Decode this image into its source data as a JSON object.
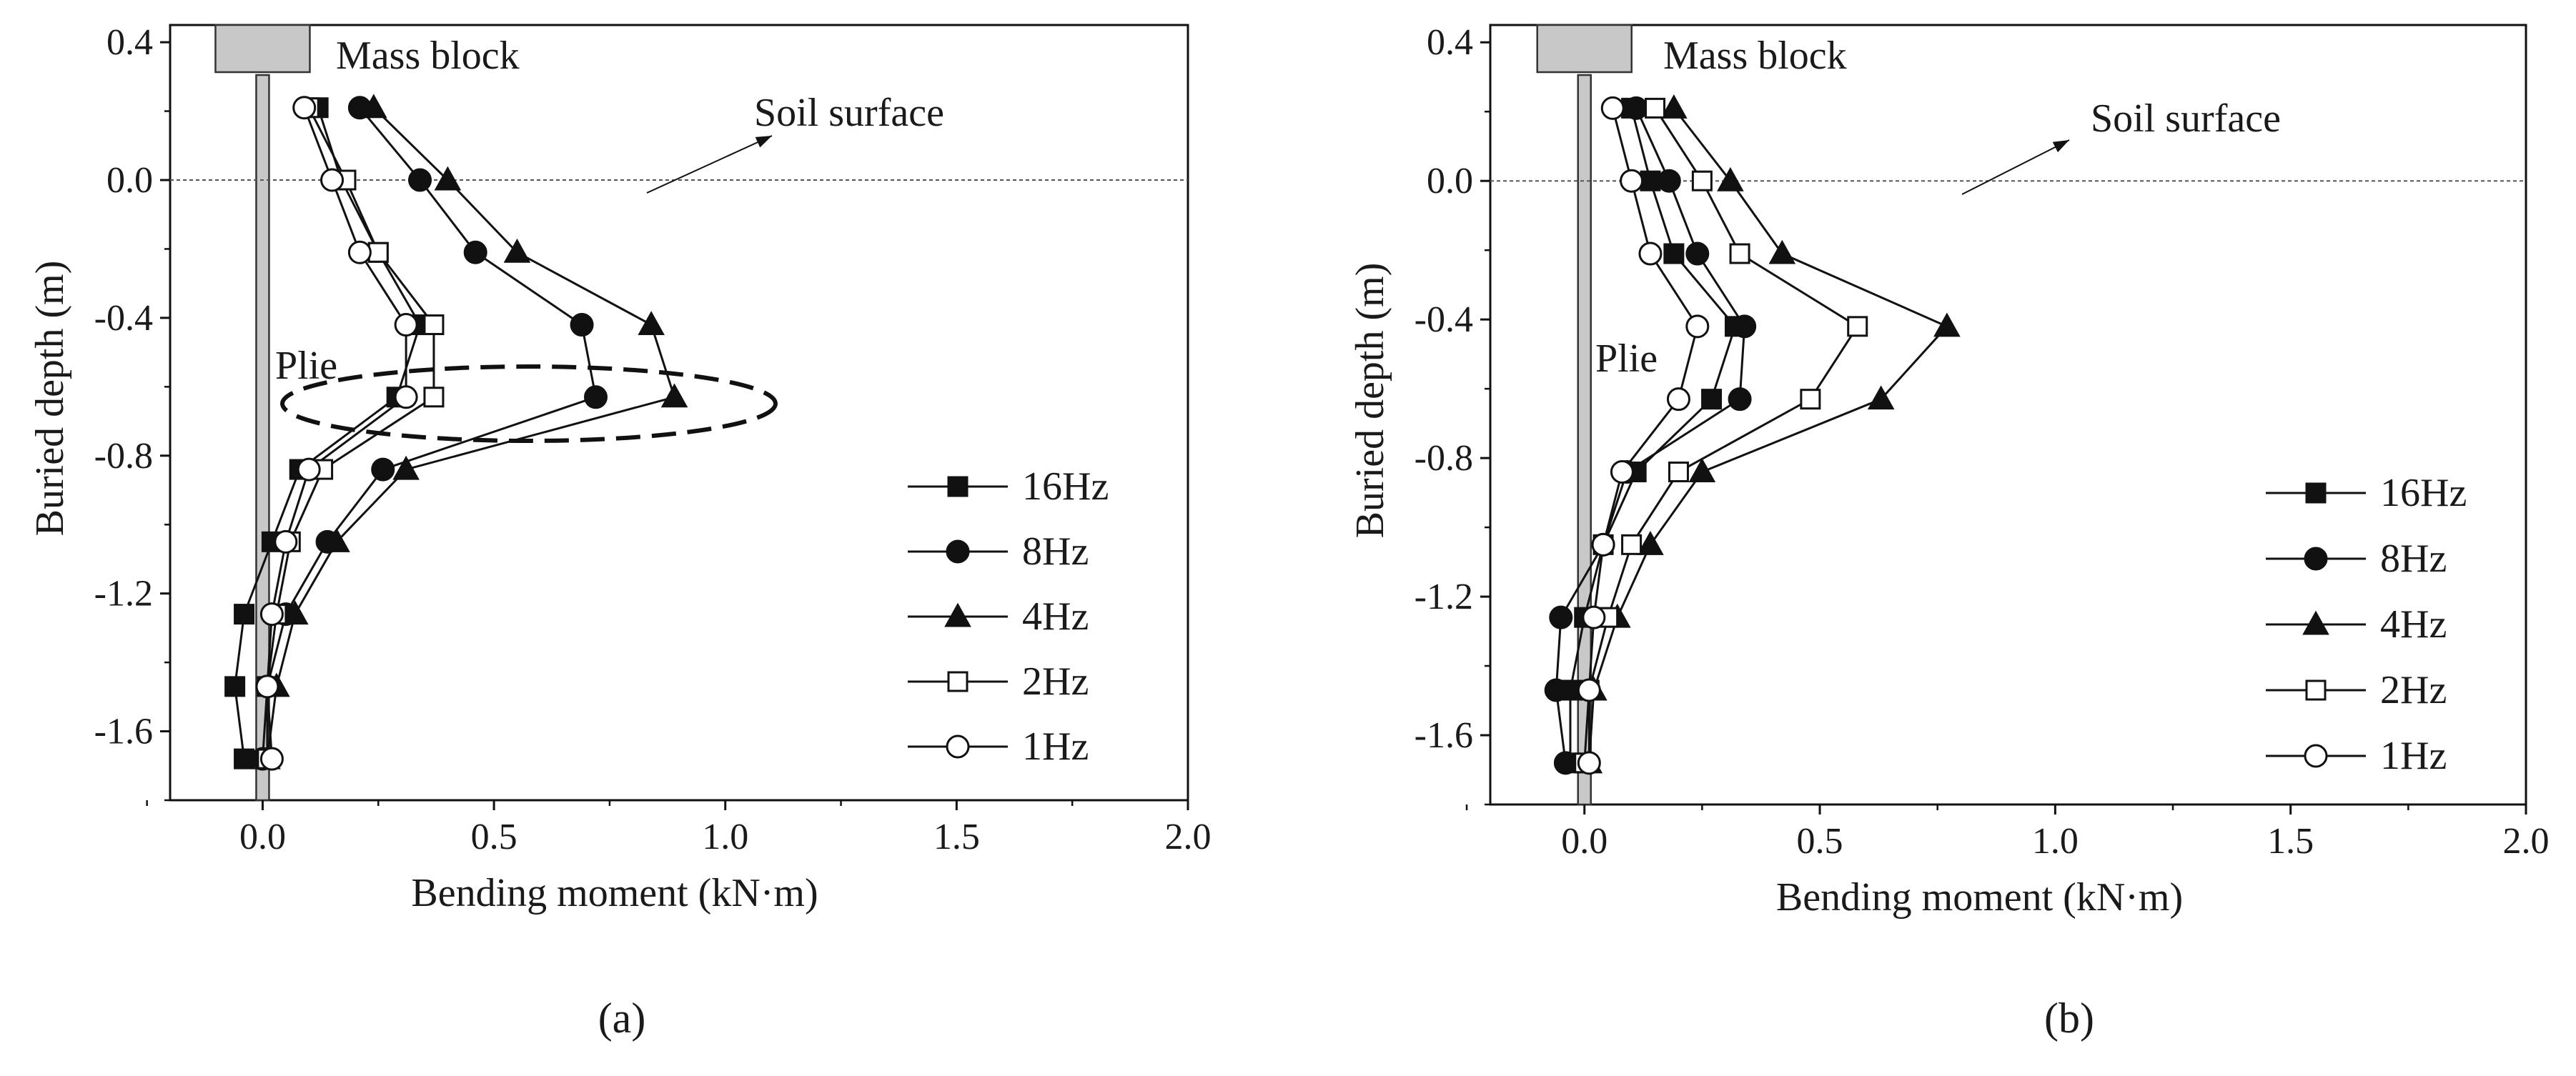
{
  "chart_data": [
    {
      "type": "line",
      "panel_label": "(a)",
      "xlabel": "Bending moment (kN·m)",
      "ylabel": "Buried depth (m)",
      "xlim": [
        -0.2,
        2.0
      ],
      "ylim": [
        -1.8,
        0.45
      ],
      "xticks": [
        "0.0",
        "0.5",
        "1.0",
        "1.5",
        "2.0"
      ],
      "yticks": [
        "0.4",
        "0.0",
        "-0.4",
        "-0.8",
        "-1.2",
        "-1.6"
      ],
      "annotations": {
        "mass_block": "Mass block",
        "soil_surface": "Soil surface",
        "pile": "Plie"
      },
      "series": [
        {
          "name": "16Hz",
          "marker": "square-filled",
          "x": [
            0.12,
            0.17,
            0.25,
            0.34,
            0.29,
            0.08,
            0.02,
            -0.04,
            -0.06,
            -0.04
          ],
          "y": [
            0.21,
            0.0,
            -0.21,
            -0.42,
            -0.63,
            -0.84,
            -1.05,
            -1.26,
            -1.47,
            -1.68
          ]
        },
        {
          "name": "8Hz",
          "marker": "circle-filled",
          "x": [
            0.21,
            0.34,
            0.46,
            0.69,
            0.72,
            0.26,
            0.14,
            0.05,
            0.01,
            0.0
          ],
          "y": [
            0.21,
            0.0,
            -0.21,
            -0.42,
            -0.63,
            -0.84,
            -1.05,
            -1.26,
            -1.47,
            -1.68
          ]
        },
        {
          "name": "4Hz",
          "marker": "triangle-filled",
          "x": [
            0.24,
            0.4,
            0.55,
            0.84,
            0.89,
            0.31,
            0.16,
            0.07,
            0.03,
            0.01
          ],
          "y": [
            0.21,
            0.0,
            -0.21,
            -0.42,
            -0.63,
            -0.84,
            -1.05,
            -1.26,
            -1.47,
            -1.68
          ]
        },
        {
          "name": "2Hz",
          "marker": "square-open",
          "x": [
            0.1,
            0.18,
            0.25,
            0.37,
            0.37,
            0.13,
            0.06,
            0.03,
            0.01,
            0.01
          ],
          "y": [
            0.21,
            0.0,
            -0.21,
            -0.42,
            -0.63,
            -0.84,
            -1.05,
            -1.26,
            -1.47,
            -1.68
          ]
        },
        {
          "name": "1Hz",
          "marker": "circle-open",
          "x": [
            0.09,
            0.15,
            0.21,
            0.31,
            0.31,
            0.1,
            0.05,
            0.02,
            0.01,
            0.02
          ],
          "y": [
            0.21,
            0.0,
            -0.21,
            -0.42,
            -0.63,
            -0.84,
            -1.05,
            -1.26,
            -1.47,
            -1.68
          ]
        }
      ]
    },
    {
      "type": "line",
      "panel_label": "(b)",
      "xlabel": "Bending moment (kN·m)",
      "ylabel": "Buried depth (m)",
      "xlim": [
        -0.2,
        2.0
      ],
      "ylim": [
        -1.8,
        0.45
      ],
      "xticks": [
        "0.0",
        "0.5",
        "1.0",
        "1.5",
        "2.0"
      ],
      "yticks": [
        "0.4",
        "0.0",
        "-0.4",
        "-0.8",
        "-1.2",
        "-1.6"
      ],
      "annotations": {
        "mass_block": "Mass block",
        "soil_surface": "Soil surface",
        "pile": "Plie"
      },
      "series": [
        {
          "name": "16Hz",
          "marker": "square-filled",
          "x": [
            0.1,
            0.14,
            0.19,
            0.32,
            0.27,
            0.11,
            0.04,
            0.0,
            -0.03,
            -0.03
          ],
          "y": [
            0.21,
            0.0,
            -0.21,
            -0.42,
            -0.63,
            -0.84,
            -1.05,
            -1.26,
            -1.47,
            -1.68
          ]
        },
        {
          "name": "8Hz",
          "marker": "circle-filled",
          "x": [
            0.11,
            0.18,
            0.24,
            0.34,
            0.33,
            0.09,
            0.04,
            -0.05,
            -0.06,
            -0.04
          ],
          "y": [
            0.21,
            0.0,
            -0.21,
            -0.42,
            -0.63,
            -0.84,
            -1.05,
            -1.26,
            -1.47,
            -1.68
          ]
        },
        {
          "name": "4Hz",
          "marker": "triangle-filled",
          "x": [
            0.19,
            0.31,
            0.42,
            0.77,
            0.63,
            0.25,
            0.14,
            0.07,
            0.02,
            0.01
          ],
          "y": [
            0.21,
            0.0,
            -0.21,
            -0.42,
            -0.63,
            -0.84,
            -1.05,
            -1.26,
            -1.47,
            -1.68
          ]
        },
        {
          "name": "2Hz",
          "marker": "square-open",
          "x": [
            0.15,
            0.25,
            0.33,
            0.58,
            0.48,
            0.2,
            0.1,
            0.05,
            0.01,
            0.0
          ],
          "y": [
            0.21,
            0.0,
            -0.21,
            -0.42,
            -0.63,
            -0.84,
            -1.05,
            -1.26,
            -1.47,
            -1.68
          ]
        },
        {
          "name": "1Hz",
          "marker": "circle-open",
          "x": [
            0.06,
            0.1,
            0.14,
            0.24,
            0.2,
            0.08,
            0.04,
            0.02,
            0.01,
            0.01
          ],
          "y": [
            0.21,
            0.0,
            -0.21,
            -0.42,
            -0.63,
            -0.84,
            -1.05,
            -1.26,
            -1.47,
            -1.68
          ]
        }
      ]
    }
  ]
}
